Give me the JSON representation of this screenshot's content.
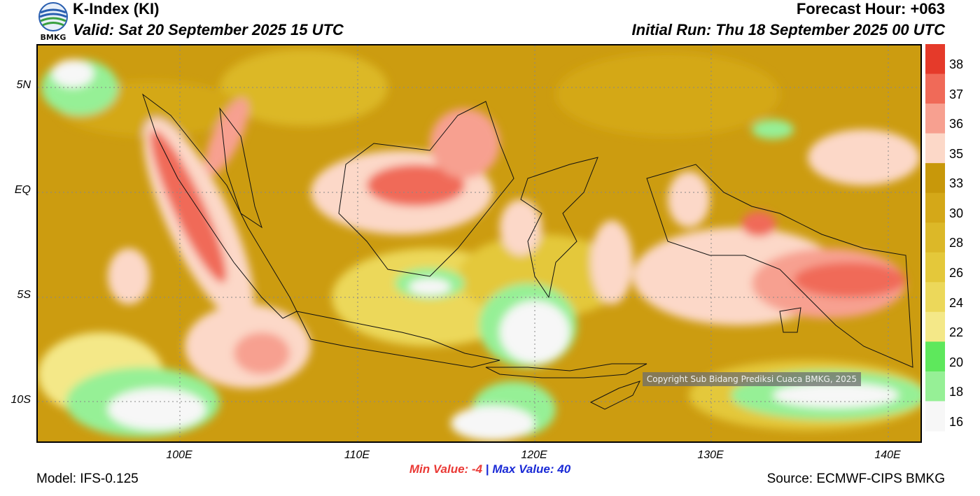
{
  "header": {
    "title": "K-Index (KI)",
    "valid": "Valid: Sat 20 September 2025 15 UTC",
    "forecast_hour": "Forecast Hour: +063",
    "initial_run": "Initial Run: Thu 18 September 2025 00 UTC"
  },
  "logo": {
    "text": "BMKG",
    "icon": "bmkg-logo-icon"
  },
  "map": {
    "lat_labels": [
      "5N",
      "EQ",
      "5S",
      "10S"
    ],
    "lon_labels": [
      "100E",
      "110E",
      "120E",
      "130E",
      "140E"
    ],
    "copyright": "Copyright Sub Bidang Prediksi Cuaca BMKG, 2025"
  },
  "colorbar": {
    "labels": [
      "38",
      "37",
      "36",
      "35",
      "33",
      "30",
      "28",
      "26",
      "24",
      "22",
      "20",
      "18",
      "16"
    ],
    "colors": [
      "#e53a2a",
      "#f06a58",
      "#f7a090",
      "#fcd8c8",
      "#c8980a",
      "#d4a818",
      "#dcb828",
      "#e4c83a",
      "#ecd85a",
      "#f4e888",
      "#5ee85c",
      "#96f096",
      "#f7f7f7"
    ]
  },
  "footer": {
    "min_label": "Min Value:",
    "min_value": "-4",
    "separator": "|",
    "max_label": "Max Value:",
    "max_value": "40",
    "model": "Model: IFS-0.125",
    "source": "Source: ECMWF-CIPS BMKG"
  }
}
